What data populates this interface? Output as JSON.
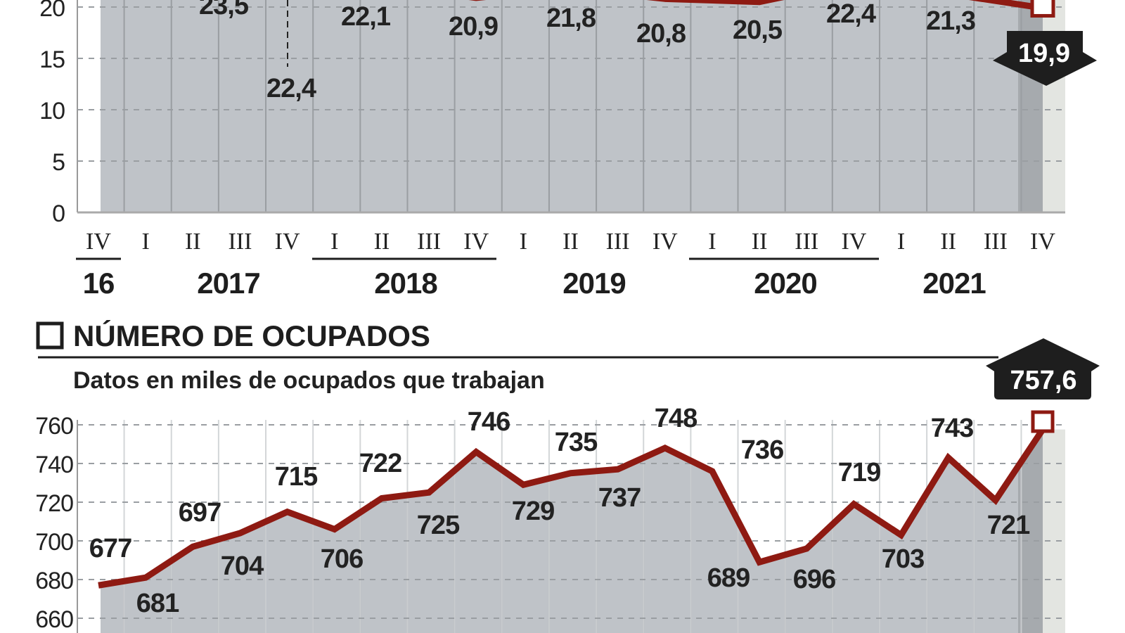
{
  "colors": {
    "line": "#8e1a12",
    "plot_fill": "#bfc3c8",
    "highlight_dark": "#a6aaae",
    "highlight_light": "#e3e5e1",
    "badge": "#1e1e1e",
    "grid": "#9a9ea2"
  },
  "x_axis": {
    "quarters": [
      "IV",
      "I",
      "II",
      "III",
      "IV",
      "I",
      "II",
      "III",
      "IV",
      "I",
      "II",
      "III",
      "IV",
      "I",
      "II",
      "III",
      "IV",
      "I",
      "II",
      "III",
      "IV"
    ],
    "years": [
      "16",
      "2017",
      "2018",
      "2019",
      "2020",
      "2021"
    ]
  },
  "chart_data": [
    {
      "type": "line",
      "title": "",
      "ylim": [
        0,
        20
      ],
      "yticks": [
        "0",
        "5",
        "10",
        "15",
        "20"
      ],
      "grid": true,
      "categories": [
        "II 2017",
        "IV 2017",
        "II 2018",
        "IV 2018",
        "II 2019",
        "IV 2019",
        "II 2020",
        "IV 2020",
        "II 2021",
        "IV 2021"
      ],
      "values": [
        23.5,
        22.4,
        22.1,
        20.9,
        21.8,
        20.8,
        20.5,
        22.4,
        21.3,
        19.9
      ],
      "labels": [
        "23,5",
        "22,4",
        "22,1",
        "20,9",
        "21,8",
        "20,8",
        "20,5",
        "22,4",
        "21,3",
        "19,9"
      ],
      "highlight": {
        "label": "19,9",
        "direction": "down"
      }
    },
    {
      "type": "area",
      "title": "NÚMERO DE OCUPADOS",
      "subtitle": "Datos en miles de ocupados que trabajan",
      "ylim": [
        660,
        760
      ],
      "yticks": [
        "660",
        "680",
        "700",
        "720",
        "740",
        "760"
      ],
      "grid": true,
      "categories": [
        "IV 2016",
        "I 2017",
        "II 2017",
        "III 2017",
        "IV 2017",
        "I 2018",
        "II 2018",
        "III 2018",
        "IV 2018",
        "I 2019",
        "II 2019",
        "III 2019",
        "IV 2019",
        "I 2020",
        "II 2020",
        "III 2020",
        "IV 2020",
        "I 2021",
        "II 2021",
        "III 2021",
        "IV 2021"
      ],
      "values": [
        677,
        681,
        697,
        704,
        715,
        706,
        722,
        725,
        746,
        729,
        735,
        737,
        748,
        736,
        689,
        696,
        719,
        703,
        743,
        721,
        757.6
      ],
      "labels": [
        "677",
        "681",
        "697",
        "704",
        "715",
        "706",
        "722",
        "725",
        "746",
        "729",
        "735",
        "737",
        "748",
        "736",
        "689",
        "696",
        "719",
        "703",
        "743",
        "721",
        "757,6"
      ],
      "highlight": {
        "label": "757,6",
        "direction": "up"
      }
    }
  ]
}
